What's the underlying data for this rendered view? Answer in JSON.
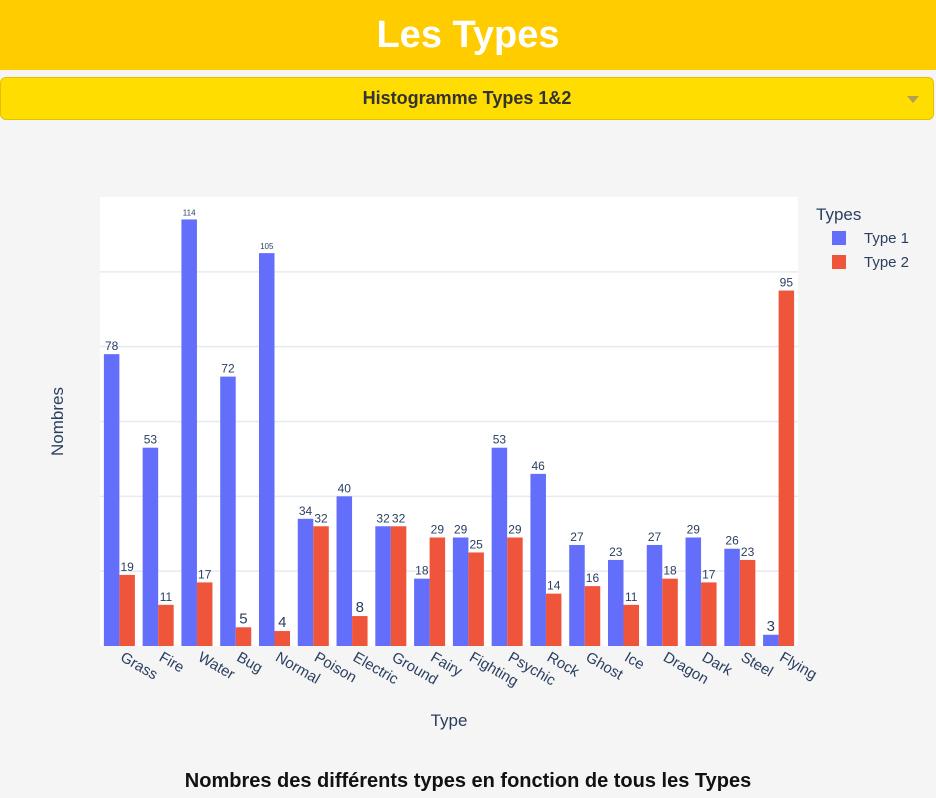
{
  "header": {
    "title": "Les Types"
  },
  "dropdown": {
    "selected": "Histogramme Types 1&2"
  },
  "colors": {
    "header_bg": "#ffcc00",
    "dropdown_bg": "#ffdd00",
    "type1": "#636efa",
    "type2": "#ef553b"
  },
  "chart_data": {
    "type": "bar",
    "categories": [
      "Grass",
      "Fire",
      "Water",
      "Bug",
      "Normal",
      "Poison",
      "Electric",
      "Ground",
      "Fairy",
      "Fighting",
      "Psychic",
      "Rock",
      "Ghost",
      "Ice",
      "Dragon",
      "Dark",
      "Steel",
      "Flying"
    ],
    "series": [
      {
        "name": "Type 1",
        "color": "#636efa",
        "values": [
          78,
          53,
          114,
          72,
          105,
          34,
          40,
          32,
          18,
          29,
          53,
          46,
          27,
          23,
          27,
          29,
          26,
          3
        ]
      },
      {
        "name": "Type 2",
        "color": "#ef553b",
        "values": [
          19,
          11,
          17,
          5,
          4,
          32,
          8,
          32,
          29,
          25,
          29,
          14,
          16,
          11,
          18,
          17,
          23,
          95
        ]
      }
    ],
    "xlabel": "Type",
    "ylabel": "Nombres",
    "legend_title": "Types",
    "legend_position": "top-right",
    "ylim": [
      0,
      120
    ],
    "grid": true
  },
  "footer": {
    "title": "Nombres des différents types en fonction de tous les Types"
  }
}
